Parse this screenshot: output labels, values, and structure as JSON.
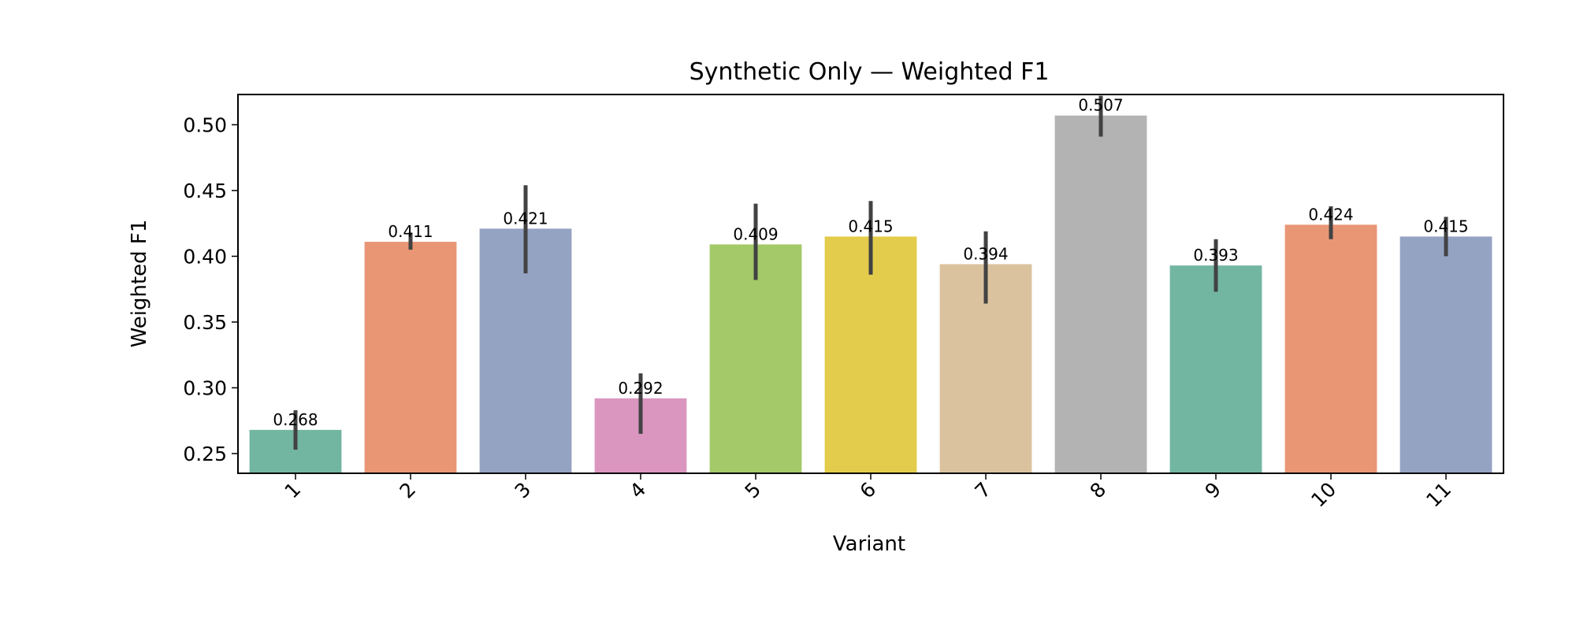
{
  "chart_data": {
    "type": "bar",
    "title": "Synthetic Only — Weighted F1",
    "xlabel": "Variant",
    "ylabel": "Weighted F1",
    "categories": [
      "1",
      "2",
      "3",
      "4",
      "5",
      "6",
      "7",
      "8",
      "9",
      "10",
      "11"
    ],
    "values": [
      0.268,
      0.411,
      0.421,
      0.292,
      0.409,
      0.415,
      0.394,
      0.507,
      0.393,
      0.424,
      0.415
    ],
    "value_labels": [
      "0.268",
      "0.411",
      "0.421",
      "0.292",
      "0.409",
      "0.415",
      "0.394",
      "0.507",
      "0.393",
      "0.424",
      "0.415"
    ],
    "error_low": [
      0.253,
      0.405,
      0.387,
      0.265,
      0.382,
      0.386,
      0.364,
      0.491,
      0.373,
      0.413,
      0.4
    ],
    "error_high": [
      0.283,
      0.418,
      0.454,
      0.311,
      0.44,
      0.442,
      0.419,
      0.522,
      0.413,
      0.438,
      0.43
    ],
    "colors": [
      "#72b6a1",
      "#e99675",
      "#95a3c3",
      "#db96c0",
      "#a3c968",
      "#e3cc4b",
      "#dbc29e",
      "#b3b3b3",
      "#72b6a1",
      "#e99675",
      "#95a3c3"
    ],
    "error_color": "#424242",
    "ylim": [
      0.235,
      0.523
    ],
    "yticks": [
      0.25,
      0.3,
      0.35,
      0.4,
      0.45,
      0.5
    ],
    "ytick_labels": [
      "0.25",
      "0.30",
      "0.35",
      "0.40",
      "0.45",
      "0.50"
    ],
    "grid": false,
    "legend": "none"
  }
}
